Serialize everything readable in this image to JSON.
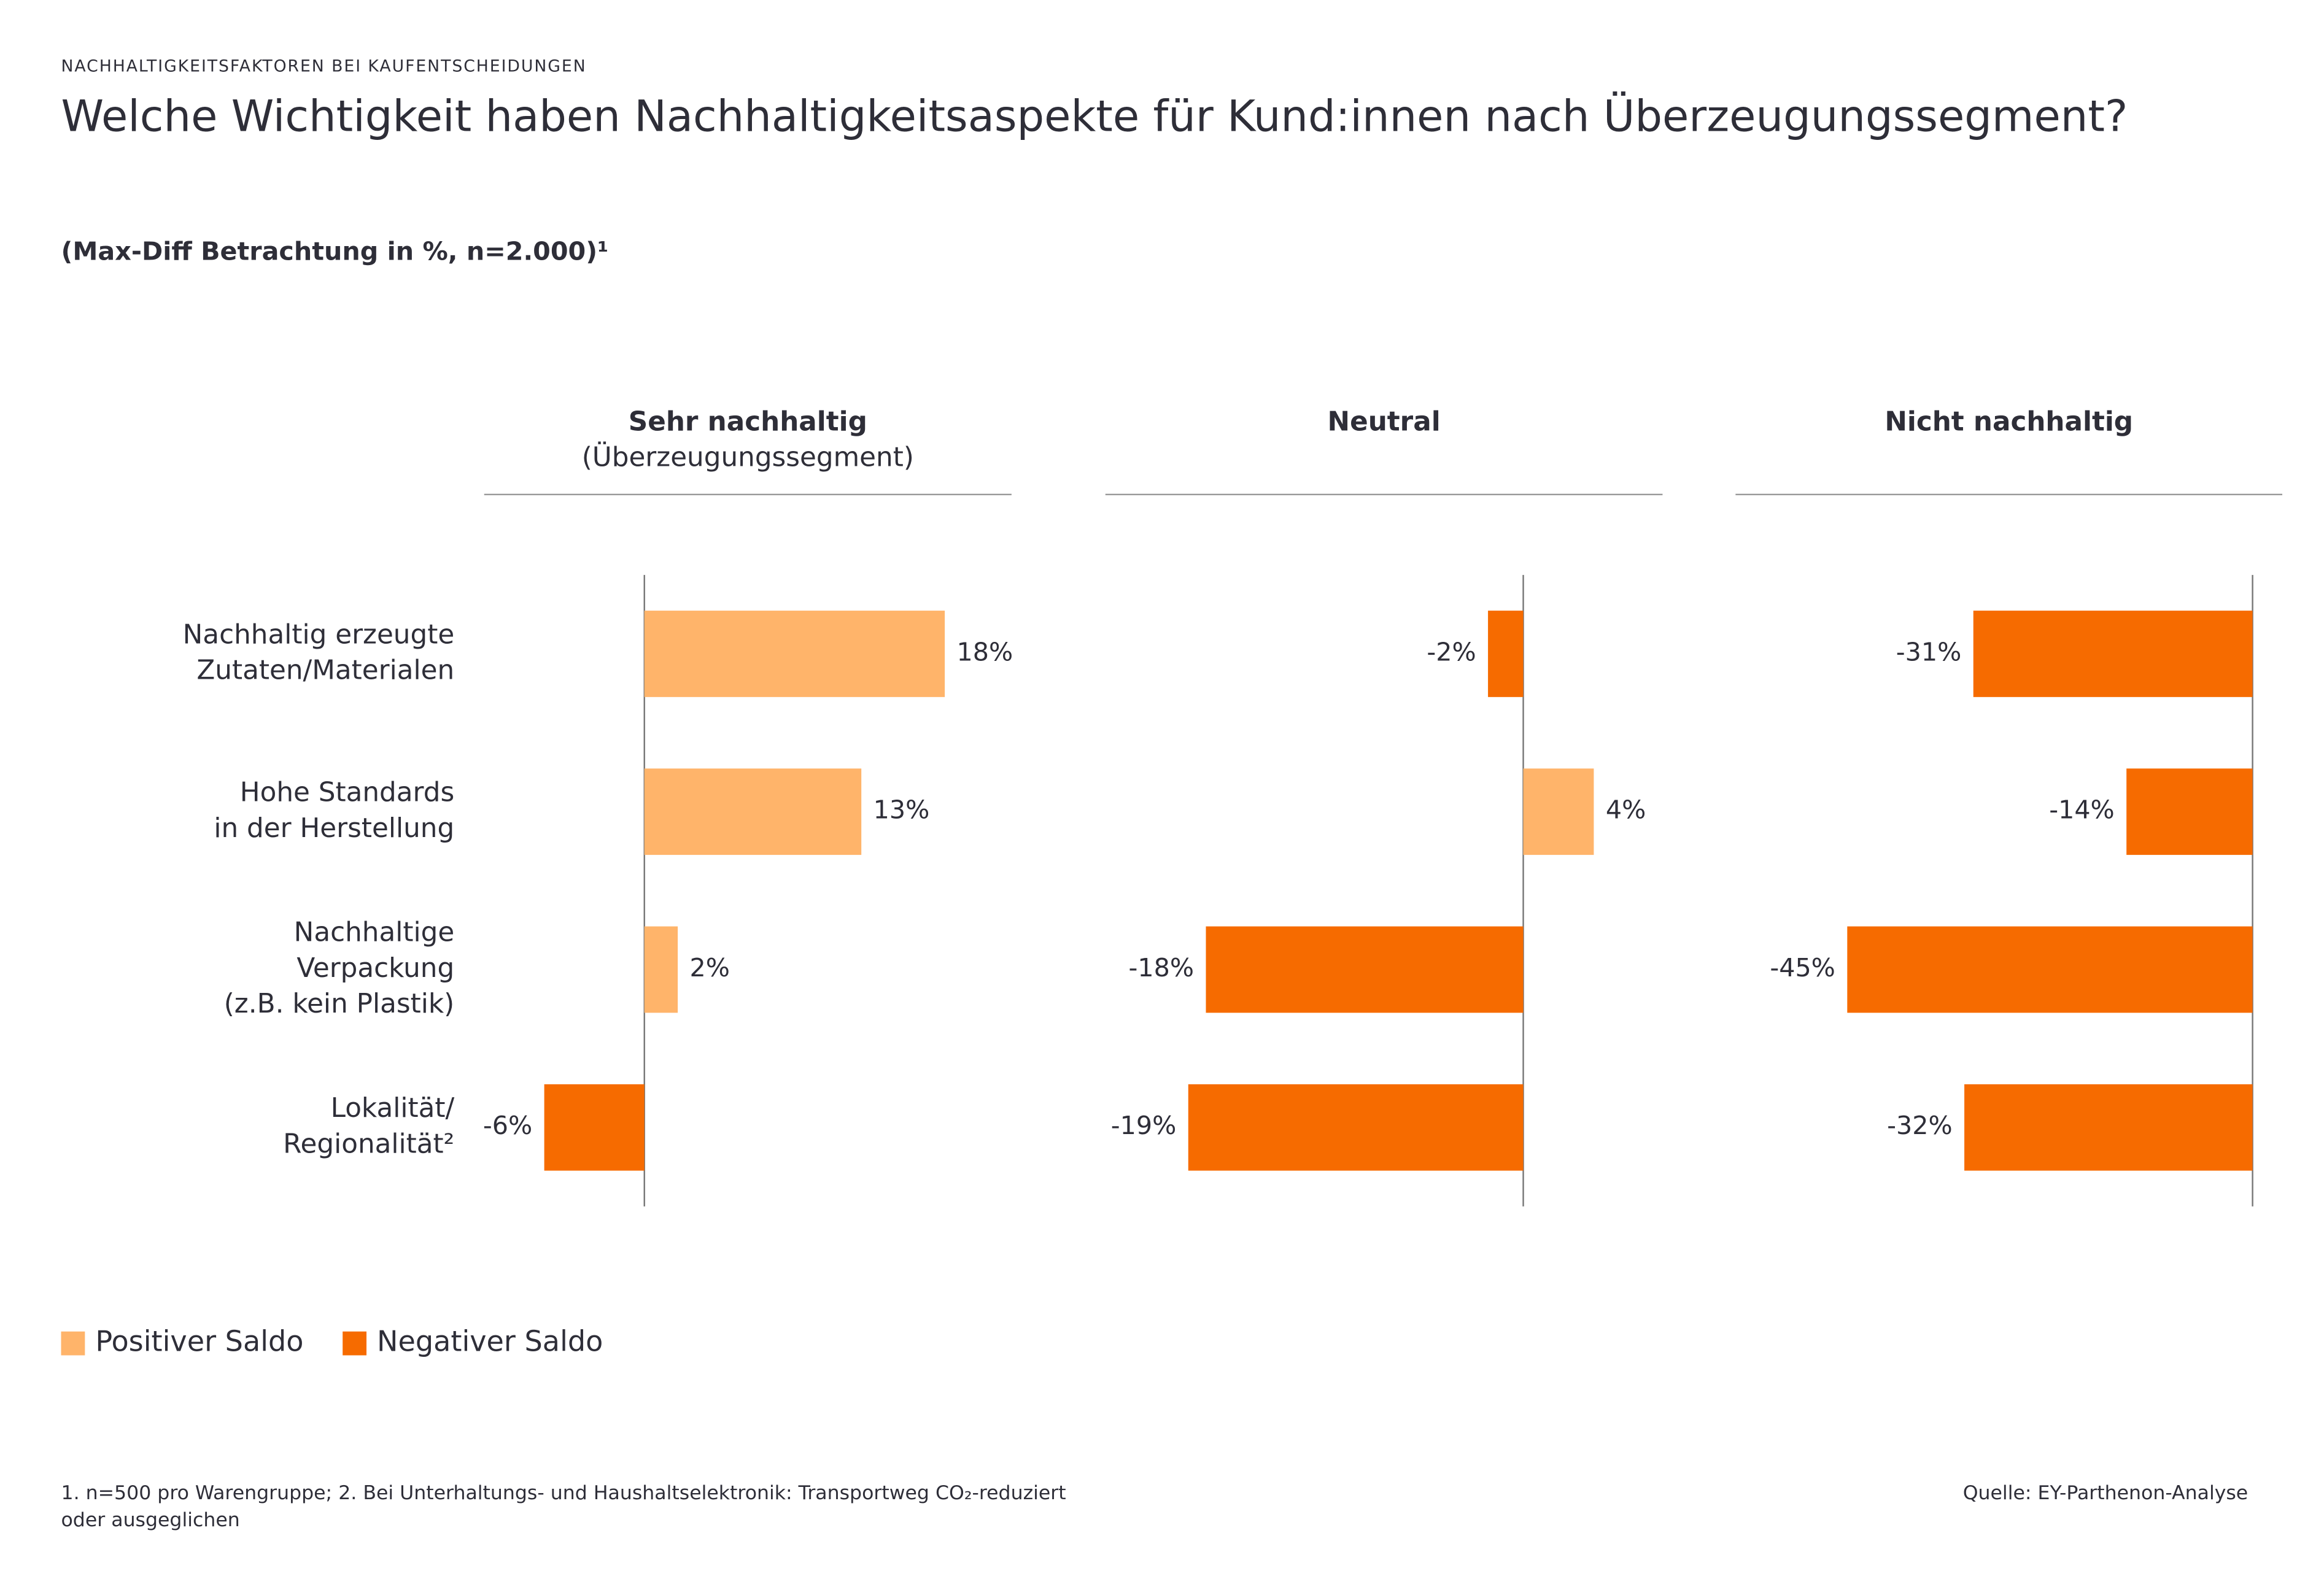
{
  "header": {
    "kicker": "NACHHALTIGKEITSFAKTOREN BEI KAUFENTSCHEIDUNGEN",
    "title": "Welche Wichtigkeit haben Nachhaltigkeitsaspekte für Kund:innen nach Überzeugungssegment?",
    "subtitle": "(Max-Diff Betrachtung in %, n=2.000)¹"
  },
  "chart_data": {
    "type": "bar",
    "orientation": "horizontal",
    "categories": [
      "Nachhaltig erzeugte\nZutaten/Materialen",
      "Hohe Standards\nin der Herstellung",
      "Nachhaltige\nVerpackung\n(z.B. kein Plastik)",
      "Lokalität/\nRegionalität²"
    ],
    "legend": [
      {
        "name": "Positiver Saldo",
        "color": "#ffb46a"
      },
      {
        "name": "Negativer Saldo",
        "color": "#f66b00"
      }
    ],
    "panels": [
      {
        "title": "Sehr nachhaltig",
        "subtitle": "(Überzeugungssegment)",
        "values": [
          18,
          13,
          2,
          -6
        ],
        "value_labels": [
          "18%",
          "13%",
          "2%",
          "-6%"
        ],
        "xlim": [
          -9.6,
          22
        ]
      },
      {
        "title": "Neutral",
        "values": [
          -2,
          4,
          -18,
          -19
        ],
        "value_labels": [
          "-2%",
          "4%",
          "-18%",
          "-19%"
        ],
        "xlim": [
          -23.7,
          7.9
        ]
      },
      {
        "title": "Nicht nachhaltig",
        "values": [
          -31,
          -14,
          -45,
          -32
        ],
        "value_labels": [
          "-31%",
          "-14%",
          "-45%",
          "-32%"
        ],
        "xlim": [
          -57.4,
          3.3
        ]
      }
    ]
  },
  "footer": {
    "footnote": [
      "1. n=500 pro Warengruppe; 2. Bei Unterhaltungs- und Haushaltselektronik: Transportweg CO₂-reduziert",
      "oder ausgeglichen"
    ],
    "source": "Quelle: EY-Parthenon-Analyse"
  }
}
